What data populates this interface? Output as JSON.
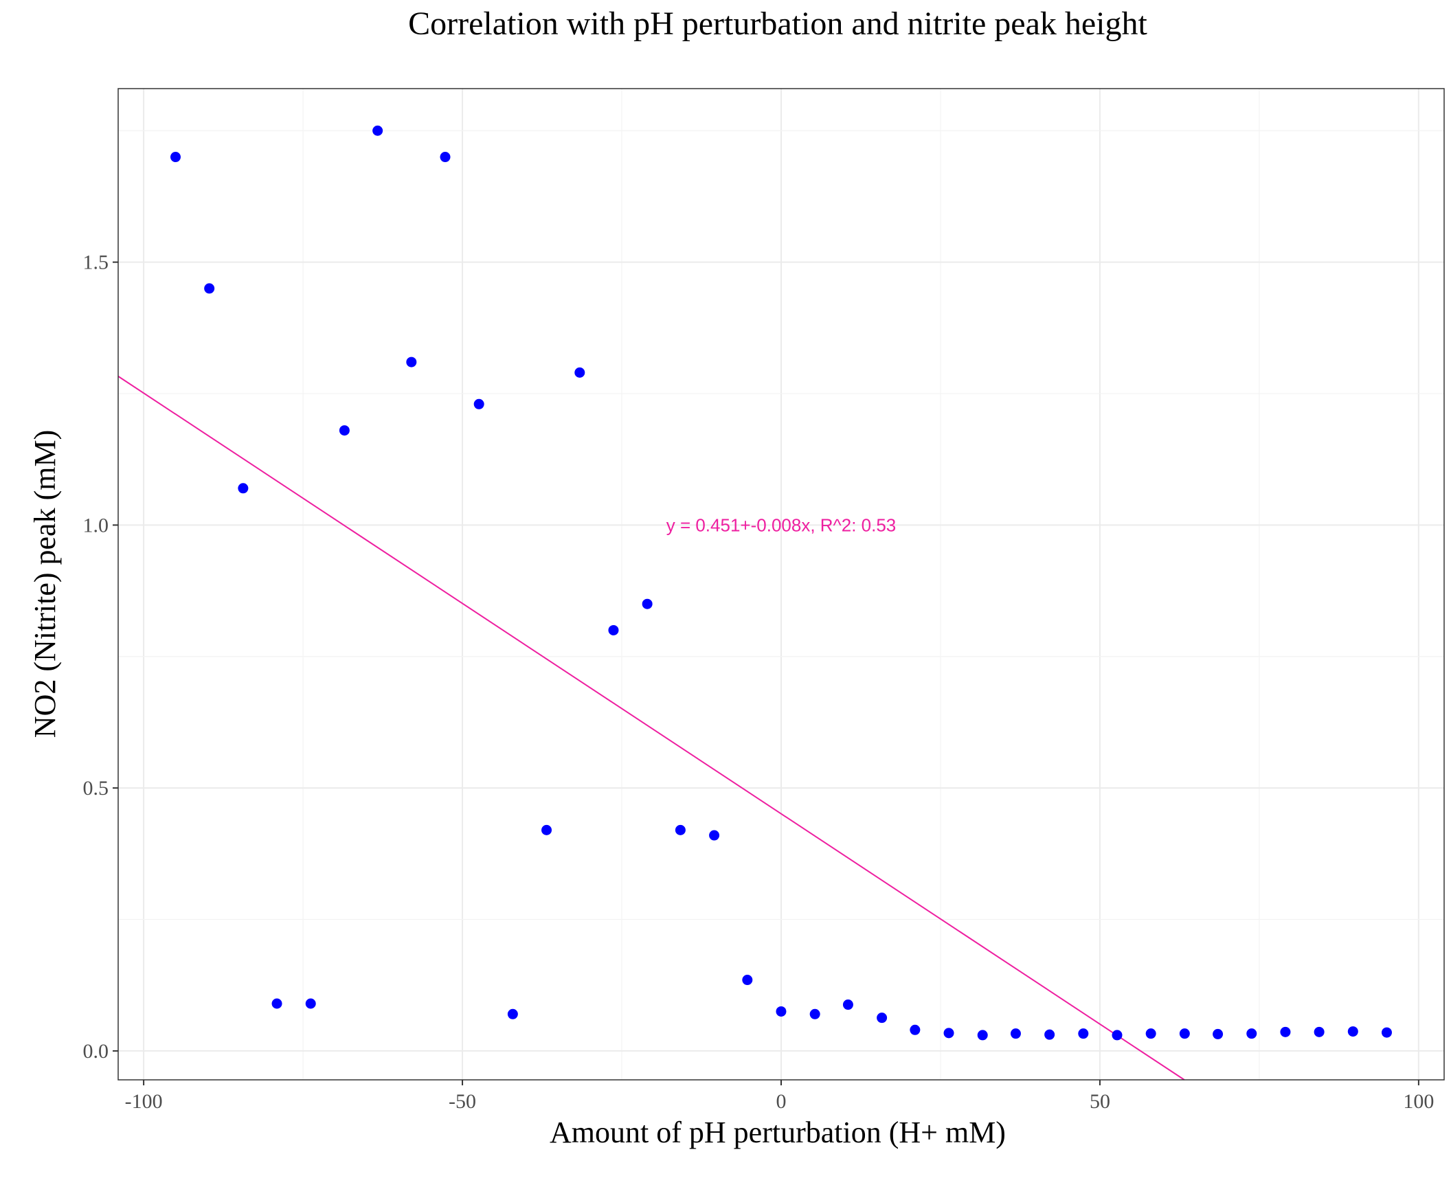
{
  "chart_data": {
    "type": "scatter",
    "title": "Correlation with pH perturbation and nitrite peak height",
    "xlabel": "Amount of pH perturbation (H+ mM)",
    "ylabel": "NO2 (Nitrite) peak (mM)",
    "xlim": [
      -104,
      104
    ],
    "ylim": [
      -0.055,
      1.83
    ],
    "xticks": [
      -100,
      -50,
      0,
      50,
      100
    ],
    "xtick_labels": [
      "-100",
      "-50",
      "0",
      "50",
      "100"
    ],
    "yticks": [
      0.0,
      0.5,
      1.0,
      1.5
    ],
    "ytick_labels": [
      "0.0",
      "0.5",
      "1.0",
      "1.5"
    ],
    "grid": true,
    "legend": "none",
    "point_color": "#0000ff",
    "line_color": "#ee1fa0",
    "points": [
      {
        "x": -95,
        "y": 1.7
      },
      {
        "x": -89.7,
        "y": 1.45
      },
      {
        "x": -84.4,
        "y": 1.07
      },
      {
        "x": -79.1,
        "y": 0.09
      },
      {
        "x": -73.8,
        "y": 0.09
      },
      {
        "x": -68.5,
        "y": 1.18
      },
      {
        "x": -63.3,
        "y": 1.75
      },
      {
        "x": -58,
        "y": 1.31
      },
      {
        "x": -52.7,
        "y": 1.7
      },
      {
        "x": -47.4,
        "y": 1.23
      },
      {
        "x": -42.1,
        "y": 0.07
      },
      {
        "x": -36.8,
        "y": 0.42
      },
      {
        "x": -31.6,
        "y": 1.29
      },
      {
        "x": -26.3,
        "y": 0.8
      },
      {
        "x": -21,
        "y": 0.85
      },
      {
        "x": -15.8,
        "y": 0.42
      },
      {
        "x": -10.5,
        "y": 0.41
      },
      {
        "x": -5.3,
        "y": 0.135
      },
      {
        "x": 0,
        "y": 0.075
      },
      {
        "x": 5.3,
        "y": 0.07
      },
      {
        "x": 10.5,
        "y": 0.088
      },
      {
        "x": 15.8,
        "y": 0.063
      },
      {
        "x": 21,
        "y": 0.04
      },
      {
        "x": 26.3,
        "y": 0.034
      },
      {
        "x": 31.6,
        "y": 0.03
      },
      {
        "x": 36.8,
        "y": 0.033
      },
      {
        "x": 42.1,
        "y": 0.031
      },
      {
        "x": 47.4,
        "y": 0.033
      },
      {
        "x": 52.7,
        "y": 0.03
      },
      {
        "x": 58,
        "y": 0.033
      },
      {
        "x": 63.3,
        "y": 0.033
      },
      {
        "x": 68.5,
        "y": 0.032
      },
      {
        "x": 73.8,
        "y": 0.033
      },
      {
        "x": 79.1,
        "y": 0.036
      },
      {
        "x": 84.4,
        "y": 0.036
      },
      {
        "x": 89.7,
        "y": 0.037
      },
      {
        "x": 95,
        "y": 0.035
      }
    ],
    "fit_line": {
      "intercept": 0.451,
      "slope": -0.008
    },
    "annotation": {
      "text": "y = 0.451+-0.008x,  R^2: 0.53",
      "x": 0,
      "y": 1.0
    }
  }
}
